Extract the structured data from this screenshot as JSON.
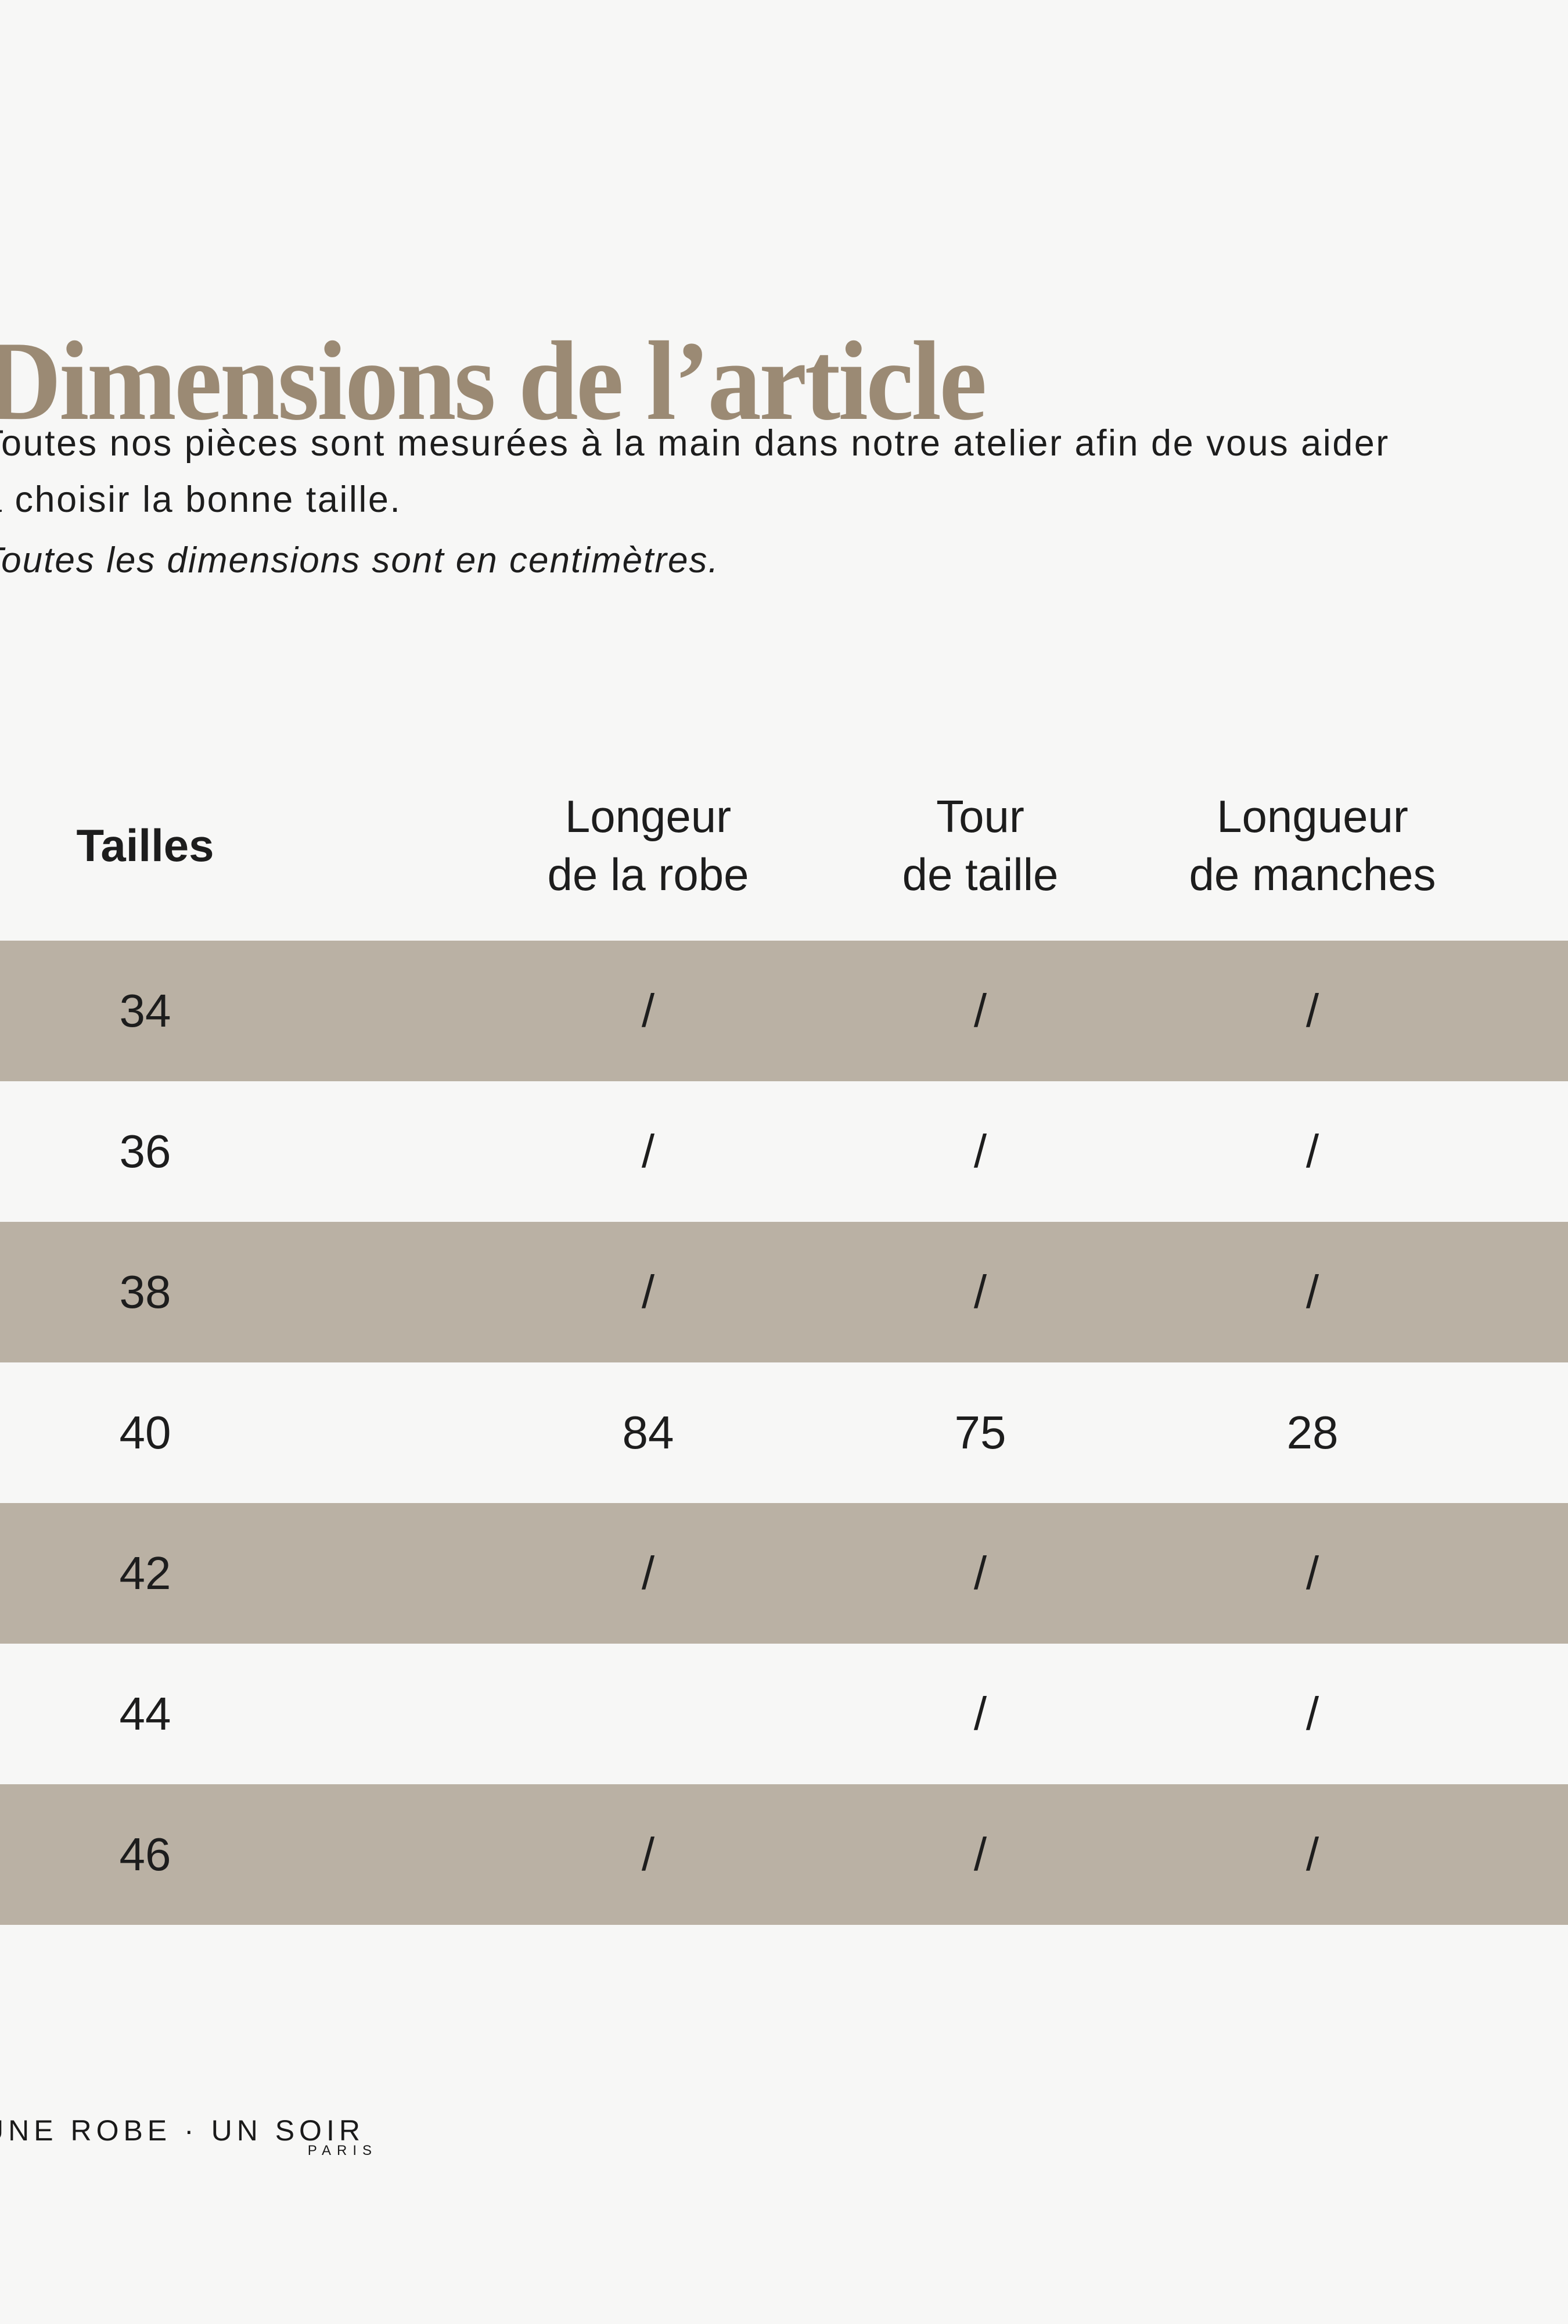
{
  "colors": {
    "background": "#f7f7f6",
    "stripe": "#bab1a4",
    "title": "#9b8a74",
    "text": "#1d1d1d"
  },
  "header": {
    "title": "Dimensions de l’article"
  },
  "intro": {
    "line1": "Toutes nos pièces sont mesurées à la main dans notre atelier afin de vous aider",
    "line2": "à choisir la bonne taille.",
    "note": "Toutes les dimensions sont en centimètres."
  },
  "table": {
    "columns": [
      {
        "label": "Tailles",
        "lines": [
          "Tailles"
        ]
      },
      {
        "label": "Longeur de la robe",
        "lines": [
          "Longeur",
          "de la robe"
        ]
      },
      {
        "label": "Tour de taille",
        "lines": [
          "Tour",
          "de taille"
        ]
      },
      {
        "label": "Longueur de manches",
        "lines": [
          "Longueur",
          "de manches"
        ]
      }
    ],
    "rows": [
      {
        "size": "34",
        "values": [
          "/",
          "/",
          "/"
        ]
      },
      {
        "size": "36",
        "values": [
          "/",
          "/",
          "/"
        ]
      },
      {
        "size": "38",
        "values": [
          "/",
          "/",
          "/"
        ]
      },
      {
        "size": "40",
        "values": [
          "84",
          "75",
          "28"
        ]
      },
      {
        "size": "42",
        "values": [
          "/",
          "/",
          "/"
        ]
      },
      {
        "size": "44",
        "values": [
          "",
          "/",
          "/"
        ]
      },
      {
        "size": "46",
        "values": [
          "/",
          "/",
          "/"
        ]
      }
    ]
  },
  "footer": {
    "brand": "UNE ROBE · UN SOIR",
    "city": "PARIS"
  }
}
